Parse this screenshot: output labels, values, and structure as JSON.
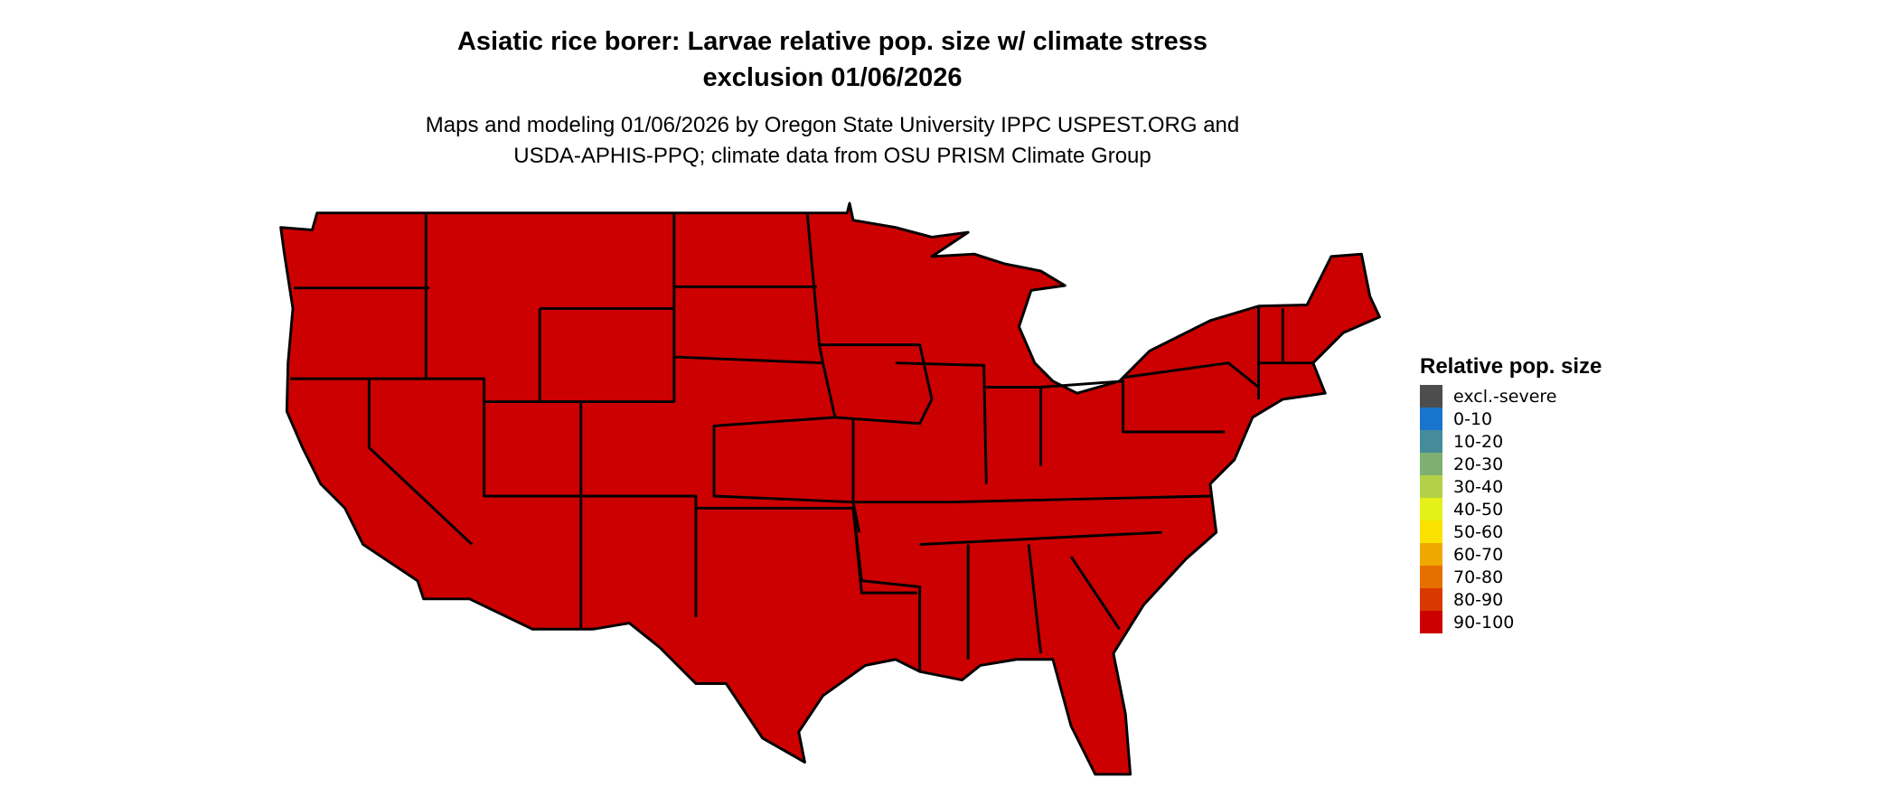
{
  "title_line1": "Asiatic rice borer: Larvae relative pop. size w/ climate stress",
  "title_line2": "exclusion 01/06/2026",
  "subtitle_line1": "Maps and modeling 01/06/2026 by Oregon State University IPPC USPEST.ORG and",
  "subtitle_line2": "USDA-APHIS-PPQ; climate data from OSU PRISM Climate Group",
  "map": {
    "fill_class": "90-100",
    "fill_color": "#CC0000"
  },
  "legend": {
    "title": "Relative pop. size",
    "items": [
      {
        "label": "excl.-severe",
        "color": "#4D4D4D"
      },
      {
        "label": "0-10",
        "color": "#1874CD"
      },
      {
        "label": "10-20",
        "color": "#458B9A"
      },
      {
        "label": "20-30",
        "color": "#7FB073"
      },
      {
        "label": "30-40",
        "color": "#B2D147"
      },
      {
        "label": "40-50",
        "color": "#E5F019"
      },
      {
        "label": "50-60",
        "color": "#FAE100"
      },
      {
        "label": "60-70",
        "color": "#EEA800"
      },
      {
        "label": "70-80",
        "color": "#E57000"
      },
      {
        "label": "80-90",
        "color": "#D93800"
      },
      {
        "label": "90-100",
        "color": "#CC0000"
      }
    ]
  }
}
